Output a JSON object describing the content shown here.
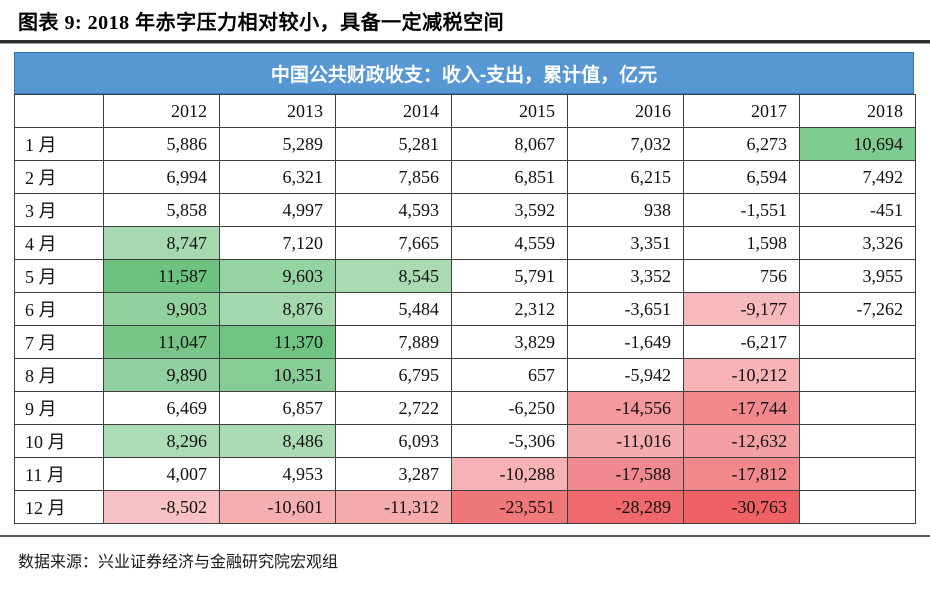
{
  "title": "图表 9: 2018 年赤字压力相对较小，具备一定减税空间",
  "table": {
    "banner": "中国公共财政收支：收入-支出，累计值，亿元",
    "banner_bg": "#5697D4",
    "banner_border": "#3C76AC",
    "heatmap_colors": {
      "strong_green": "#6DC280",
      "light_green": "#ACDCB4",
      "light_red": "#F8C2C4",
      "strong_red": "#EE6165",
      "neutral": "#FFFFFF"
    },
    "years": [
      "2012",
      "2013",
      "2014",
      "2015",
      "2016",
      "2017",
      "2018"
    ],
    "rows": [
      {
        "month": "1 月",
        "cells": [
          [
            "5,886",
            "#FFFFFF"
          ],
          [
            "5,289",
            "#FFFFFF"
          ],
          [
            "5,281",
            "#FFFFFF"
          ],
          [
            "8,067",
            "#FFFFFF"
          ],
          [
            "7,032",
            "#FFFFFF"
          ],
          [
            "6,273",
            "#FFFFFF"
          ],
          [
            "10,694",
            "#7FCA8E"
          ]
        ]
      },
      {
        "month": "2 月",
        "cells": [
          [
            "6,994",
            "#FFFFFF"
          ],
          [
            "6,321",
            "#FFFFFF"
          ],
          [
            "7,856",
            "#FFFFFF"
          ],
          [
            "6,851",
            "#FFFFFF"
          ],
          [
            "6,215",
            "#FFFFFF"
          ],
          [
            "6,594",
            "#FFFFFF"
          ],
          [
            "7,492",
            "#FFFFFF"
          ]
        ]
      },
      {
        "month": "3 月",
        "cells": [
          [
            "5,858",
            "#FFFFFF"
          ],
          [
            "4,997",
            "#FFFFFF"
          ],
          [
            "4,593",
            "#FFFFFF"
          ],
          [
            "3,592",
            "#FFFFFF"
          ],
          [
            "938",
            "#FFFFFF"
          ],
          [
            "-1,551",
            "#FFFFFF"
          ],
          [
            "-451",
            "#FFFFFF"
          ]
        ]
      },
      {
        "month": "4 月",
        "cells": [
          [
            "8,747",
            "#A6D9AF"
          ],
          [
            "7,120",
            "#FFFFFF"
          ],
          [
            "7,665",
            "#FFFFFF"
          ],
          [
            "4,559",
            "#FFFFFF"
          ],
          [
            "3,351",
            "#FFFFFF"
          ],
          [
            "1,598",
            "#FFFFFF"
          ],
          [
            "3,326",
            "#FFFFFF"
          ]
        ]
      },
      {
        "month": "5 月",
        "cells": [
          [
            "11,587",
            "#6DC280"
          ],
          [
            "9,603",
            "#96D3A3"
          ],
          [
            "8,545",
            "#A9DAB1"
          ],
          [
            "5,791",
            "#FFFFFF"
          ],
          [
            "3,352",
            "#FFFFFF"
          ],
          [
            "756",
            "#FFFFFF"
          ],
          [
            "3,955",
            "#FFFFFF"
          ]
        ]
      },
      {
        "month": "6 月",
        "cells": [
          [
            "9,903",
            "#91D19E"
          ],
          [
            "8,876",
            "#A4D8AD"
          ],
          [
            "5,484",
            "#FFFFFF"
          ],
          [
            "2,312",
            "#FFFFFF"
          ],
          [
            "-3,651",
            "#FFFFFF"
          ],
          [
            "-9,177",
            "#F7BABC"
          ],
          [
            "-7,262",
            "#FFFFFF"
          ]
        ]
      },
      {
        "month": "7 月",
        "cells": [
          [
            "11,047",
            "#77C687"
          ],
          [
            "11,370",
            "#70C483"
          ],
          [
            "7,889",
            "#FFFFFF"
          ],
          [
            "3,829",
            "#FFFFFF"
          ],
          [
            "-1,649",
            "#FFFFFF"
          ],
          [
            "-6,217",
            "#FFFFFF"
          ],
          [
            "",
            "#FFFFFF"
          ]
        ]
      },
      {
        "month": "8 月",
        "cells": [
          [
            "9,890",
            "#91D19F"
          ],
          [
            "10,351",
            "#86CC94"
          ],
          [
            "6,795",
            "#FFFFFF"
          ],
          [
            "657",
            "#FFFFFF"
          ],
          [
            "-5,942",
            "#FFFFFF"
          ],
          [
            "-10,212",
            "#F6B2B4"
          ],
          [
            "",
            "#FFFFFF"
          ]
        ]
      },
      {
        "month": "9 月",
        "cells": [
          [
            "6,469",
            "#FFFFFF"
          ],
          [
            "6,857",
            "#FFFFFF"
          ],
          [
            "2,722",
            "#FFFFFF"
          ],
          [
            "-6,250",
            "#FFFFFF"
          ],
          [
            "-14,556",
            "#F3989B"
          ],
          [
            "-17,744",
            "#F1898D"
          ],
          [
            "",
            "#FFFFFF"
          ]
        ]
      },
      {
        "month": "10 月",
        "cells": [
          [
            "8,296",
            "#ACDCB4"
          ],
          [
            "8,486",
            "#AADBB2"
          ],
          [
            "6,093",
            "#FFFFFF"
          ],
          [
            "-5,306",
            "#FFFFFF"
          ],
          [
            "-11,016",
            "#F5ACAE"
          ],
          [
            "-12,632",
            "#F4A0A3"
          ],
          [
            "",
            "#FFFFFF"
          ]
        ]
      },
      {
        "month": "11 月",
        "cells": [
          [
            "4,007",
            "#FFFFFF"
          ],
          [
            "4,953",
            "#FFFFFF"
          ],
          [
            "3,287",
            "#FFFFFF"
          ],
          [
            "-10,288",
            "#F6B2B4"
          ],
          [
            "-17,588",
            "#F18A8E"
          ],
          [
            "-17,812",
            "#F1898C"
          ],
          [
            "",
            "#FFFFFF"
          ]
        ]
      },
      {
        "month": "12 月",
        "cells": [
          [
            "-8,502",
            "#F8C2C4"
          ],
          [
            "-10,601",
            "#F6AFB1"
          ],
          [
            "-11,312",
            "#F5AAAC"
          ],
          [
            "-23,551",
            "#F0777A"
          ],
          [
            "-28,289",
            "#EF696C"
          ],
          [
            "-30,763",
            "#EE6165"
          ],
          [
            "",
            "#FFFFFF"
          ]
        ]
      }
    ]
  },
  "source": "数据来源：兴业证券经济与金融研究院宏观组"
}
